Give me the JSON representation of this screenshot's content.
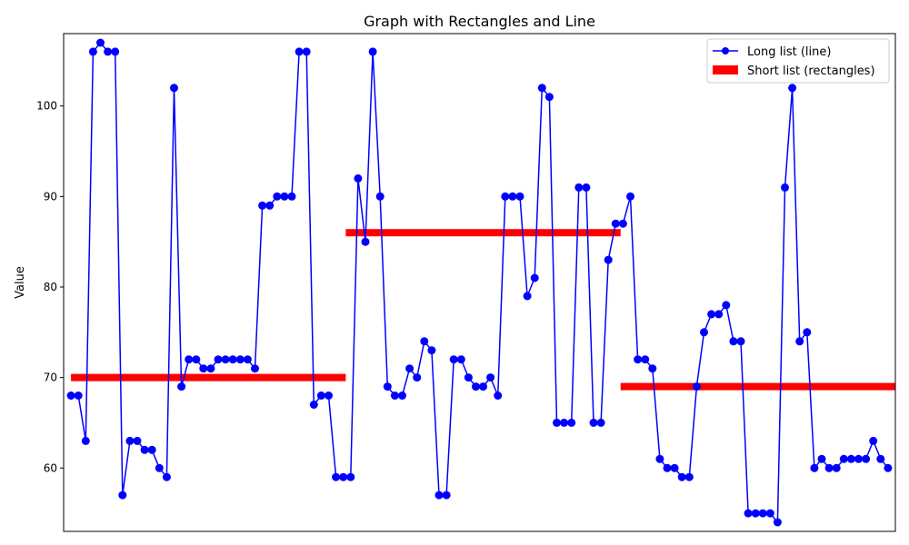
{
  "chart_data": {
    "type": "line",
    "title": "Graph with Rectangles and Line",
    "xlabel": "",
    "ylabel": "Value",
    "ylim": [
      53,
      108
    ],
    "xlim": [
      0,
      113
    ],
    "yticks": [
      60,
      70,
      80,
      90,
      100
    ],
    "grid": false,
    "legend_position": "top-right",
    "series": [
      {
        "name": "Long list (line)",
        "type": "line",
        "color": "#0000ff",
        "marker": "circle",
        "values": [
          68,
          68,
          63,
          106,
          107,
          106,
          106,
          57,
          63,
          63,
          62,
          62,
          60,
          59,
          102,
          69,
          72,
          72,
          71,
          71,
          72,
          72,
          72,
          72,
          72,
          71,
          89,
          89,
          90,
          90,
          90,
          106,
          106,
          67,
          68,
          68,
          59,
          59,
          59,
          92,
          85,
          106,
          90,
          69,
          68,
          68,
          71,
          70,
          74,
          73,
          57,
          57,
          72,
          72,
          70,
          69,
          69,
          70,
          68,
          90,
          90,
          90,
          79,
          81,
          102,
          101,
          65,
          65,
          65,
          91,
          91,
          65,
          65,
          83,
          87,
          87,
          90,
          72,
          72,
          71,
          61,
          60,
          60,
          59,
          59,
          69,
          75,
          77,
          77,
          78,
          74,
          74,
          55,
          55,
          55,
          55,
          54,
          91,
          102,
          74,
          75,
          60,
          61,
          60,
          60,
          61,
          61,
          61,
          61,
          63,
          61,
          60
        ]
      },
      {
        "name": "Short list (rectangles)",
        "type": "rectangles",
        "color": "#ff0000",
        "segments": [
          {
            "x_start": 0,
            "x_end": 37.33,
            "value": 70
          },
          {
            "x_start": 37.33,
            "x_end": 74.67,
            "value": 86
          },
          {
            "x_start": 74.67,
            "x_end": 112,
            "value": 69
          }
        ]
      }
    ]
  }
}
